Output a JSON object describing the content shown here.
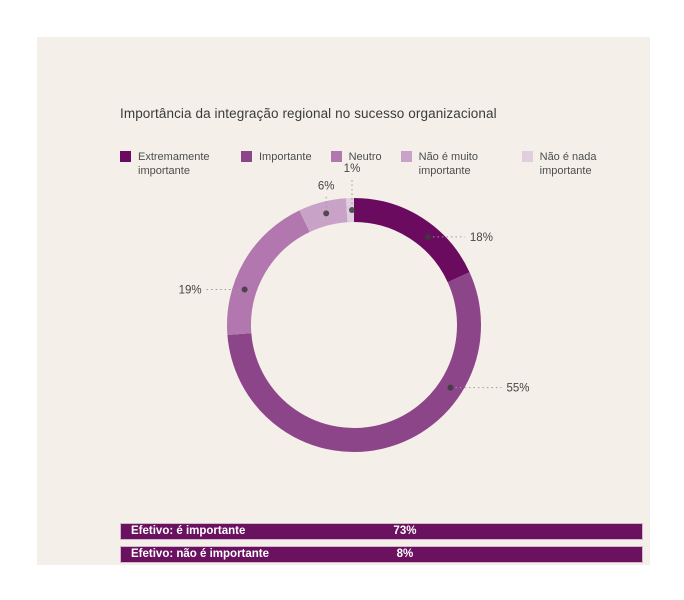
{
  "title": "Importância da integração regional no sucesso organizacional",
  "colors": {
    "page_bg": "#ffffff",
    "panel_bg": "#f4f0e9",
    "title_text": "#3b3b3b",
    "legend_text": "#4d4d4d",
    "callout_text": "#454545",
    "callout_line": "#9b9b9b",
    "callout_dot": "#3b3b3b",
    "bar_bg": "#6a1160",
    "bar_border": "#d2b8cc",
    "bar_text": "#ffffff"
  },
  "chart_data": {
    "type": "pie",
    "subtype": "donut",
    "title": "Importância da integração regional no sucesso organizacional",
    "unit": "%",
    "clockwise": true,
    "start_angle_deg": 0,
    "legend_position": "top",
    "slices": [
      {
        "label": "Extremamente importante",
        "value": 18,
        "pct_label": "18%",
        "color": "#6a0b60",
        "callout": {
          "angle": 40,
          "dir": "right",
          "len": 37
        }
      },
      {
        "label": "Importante",
        "value": 55,
        "pct_label": "55%",
        "color": "#8d4589",
        "callout": {
          "angle": 123,
          "dir": "right",
          "len": 51
        }
      },
      {
        "label": "Neutro",
        "value": 19,
        "pct_label": "19%",
        "color": "#b177ae",
        "callout": {
          "angle": 288,
          "dir": "left",
          "len": 38
        }
      },
      {
        "label": "Não é muito importante",
        "value": 6,
        "pct_label": "6%",
        "color": "#c9a3c7",
        "callout": {
          "angle": 346,
          "dir": "up",
          "len": 18
        }
      },
      {
        "label": "Não é nada importante",
        "value": 1,
        "pct_label": "1%",
        "color": "#e0cdde",
        "callout": {
          "angle": 359,
          "dir": "up",
          "len": 32
        }
      }
    ],
    "summary": [
      {
        "label": "Efetivo: é importante",
        "value": 73,
        "value_label": "73%"
      },
      {
        "label": "Efetivo: não é importante",
        "value": 8,
        "value_label": "8%"
      }
    ]
  }
}
